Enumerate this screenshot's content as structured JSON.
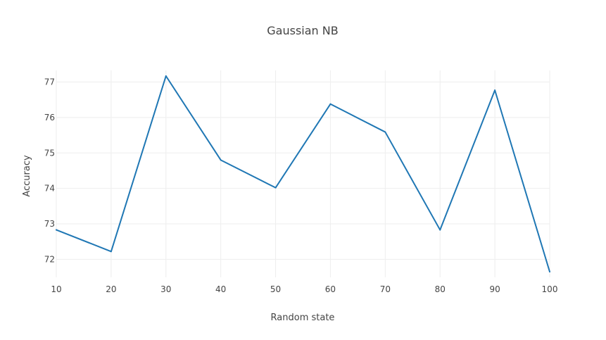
{
  "chart_data": {
    "type": "line",
    "title": "Gaussian NB",
    "xlabel": "Random state",
    "ylabel": "Accuracy",
    "x": [
      10,
      20,
      30,
      40,
      50,
      60,
      70,
      80,
      90,
      100
    ],
    "series": [
      {
        "values": [
          72.83,
          72.22,
          77.17,
          74.8,
          74.02,
          76.38,
          75.59,
          72.83,
          76.77,
          71.65
        ],
        "color": "#1f77b4"
      }
    ],
    "xticks": [
      10,
      20,
      30,
      40,
      50,
      60,
      70,
      80,
      90,
      100
    ],
    "yticks": [
      72,
      73,
      74,
      75,
      76,
      77
    ],
    "xlim": [
      10,
      100
    ],
    "ylim": [
      71.65,
      77.17
    ],
    "grid": true,
    "legend": "none"
  }
}
